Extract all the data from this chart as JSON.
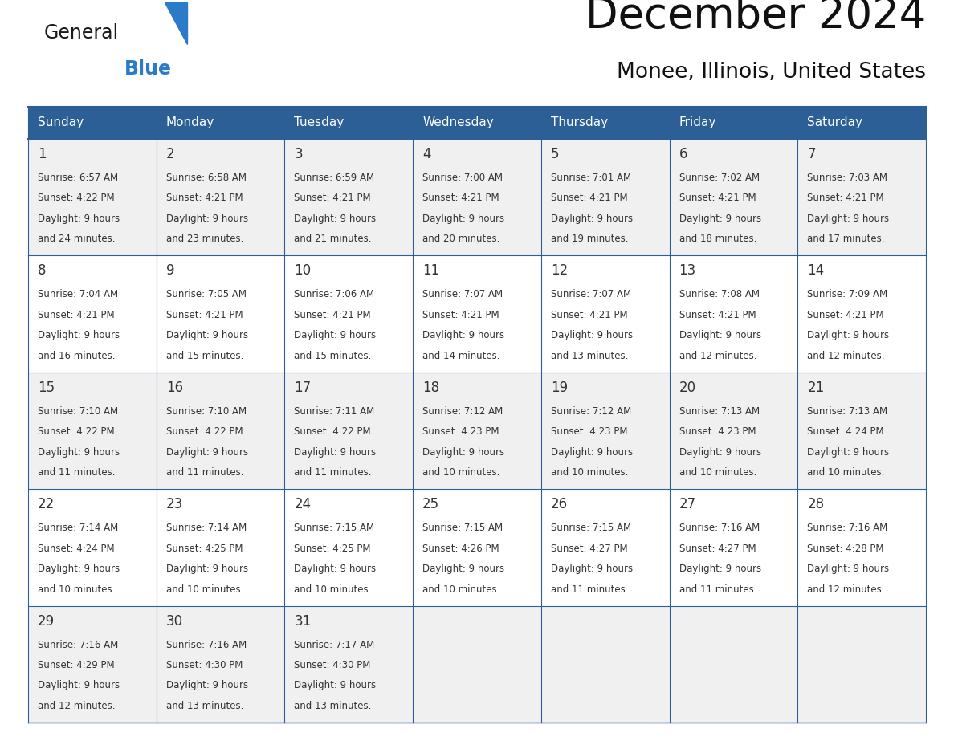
{
  "title": "December 2024",
  "subtitle": "Monee, Illinois, United States",
  "header_bg": "#2B5F96",
  "header_text_color": "#FFFFFF",
  "cell_bg_odd": "#F0F0F0",
  "cell_bg_even": "#FFFFFF",
  "day_number_color": "#333333",
  "text_color": "#333333",
  "border_color": "#2B5F96",
  "logo_general_color": "#1a1a1a",
  "logo_blue_color": "#2B7BC8",
  "logo_triangle_color": "#2B7BC8",
  "days_of_week": [
    "Sunday",
    "Monday",
    "Tuesday",
    "Wednesday",
    "Thursday",
    "Friday",
    "Saturday"
  ],
  "weeks": [
    [
      {
        "day": 1,
        "sunrise": "6:57 AM",
        "sunset": "4:22 PM",
        "daylight_hours": 9,
        "daylight_minutes": 24
      },
      {
        "day": 2,
        "sunrise": "6:58 AM",
        "sunset": "4:21 PM",
        "daylight_hours": 9,
        "daylight_minutes": 23
      },
      {
        "day": 3,
        "sunrise": "6:59 AM",
        "sunset": "4:21 PM",
        "daylight_hours": 9,
        "daylight_minutes": 21
      },
      {
        "day": 4,
        "sunrise": "7:00 AM",
        "sunset": "4:21 PM",
        "daylight_hours": 9,
        "daylight_minutes": 20
      },
      {
        "day": 5,
        "sunrise": "7:01 AM",
        "sunset": "4:21 PM",
        "daylight_hours": 9,
        "daylight_minutes": 19
      },
      {
        "day": 6,
        "sunrise": "7:02 AM",
        "sunset": "4:21 PM",
        "daylight_hours": 9,
        "daylight_minutes": 18
      },
      {
        "day": 7,
        "sunrise": "7:03 AM",
        "sunset": "4:21 PM",
        "daylight_hours": 9,
        "daylight_minutes": 17
      }
    ],
    [
      {
        "day": 8,
        "sunrise": "7:04 AM",
        "sunset": "4:21 PM",
        "daylight_hours": 9,
        "daylight_minutes": 16
      },
      {
        "day": 9,
        "sunrise": "7:05 AM",
        "sunset": "4:21 PM",
        "daylight_hours": 9,
        "daylight_minutes": 15
      },
      {
        "day": 10,
        "sunrise": "7:06 AM",
        "sunset": "4:21 PM",
        "daylight_hours": 9,
        "daylight_minutes": 15
      },
      {
        "day": 11,
        "sunrise": "7:07 AM",
        "sunset": "4:21 PM",
        "daylight_hours": 9,
        "daylight_minutes": 14
      },
      {
        "day": 12,
        "sunrise": "7:07 AM",
        "sunset": "4:21 PM",
        "daylight_hours": 9,
        "daylight_minutes": 13
      },
      {
        "day": 13,
        "sunrise": "7:08 AM",
        "sunset": "4:21 PM",
        "daylight_hours": 9,
        "daylight_minutes": 12
      },
      {
        "day": 14,
        "sunrise": "7:09 AM",
        "sunset": "4:21 PM",
        "daylight_hours": 9,
        "daylight_minutes": 12
      }
    ],
    [
      {
        "day": 15,
        "sunrise": "7:10 AM",
        "sunset": "4:22 PM",
        "daylight_hours": 9,
        "daylight_minutes": 11
      },
      {
        "day": 16,
        "sunrise": "7:10 AM",
        "sunset": "4:22 PM",
        "daylight_hours": 9,
        "daylight_minutes": 11
      },
      {
        "day": 17,
        "sunrise": "7:11 AM",
        "sunset": "4:22 PM",
        "daylight_hours": 9,
        "daylight_minutes": 11
      },
      {
        "day": 18,
        "sunrise": "7:12 AM",
        "sunset": "4:23 PM",
        "daylight_hours": 9,
        "daylight_minutes": 10
      },
      {
        "day": 19,
        "sunrise": "7:12 AM",
        "sunset": "4:23 PM",
        "daylight_hours": 9,
        "daylight_minutes": 10
      },
      {
        "day": 20,
        "sunrise": "7:13 AM",
        "sunset": "4:23 PM",
        "daylight_hours": 9,
        "daylight_minutes": 10
      },
      {
        "day": 21,
        "sunrise": "7:13 AM",
        "sunset": "4:24 PM",
        "daylight_hours": 9,
        "daylight_minutes": 10
      }
    ],
    [
      {
        "day": 22,
        "sunrise": "7:14 AM",
        "sunset": "4:24 PM",
        "daylight_hours": 9,
        "daylight_minutes": 10
      },
      {
        "day": 23,
        "sunrise": "7:14 AM",
        "sunset": "4:25 PM",
        "daylight_hours": 9,
        "daylight_minutes": 10
      },
      {
        "day": 24,
        "sunrise": "7:15 AM",
        "sunset": "4:25 PM",
        "daylight_hours": 9,
        "daylight_minutes": 10
      },
      {
        "day": 25,
        "sunrise": "7:15 AM",
        "sunset": "4:26 PM",
        "daylight_hours": 9,
        "daylight_minutes": 10
      },
      {
        "day": 26,
        "sunrise": "7:15 AM",
        "sunset": "4:27 PM",
        "daylight_hours": 9,
        "daylight_minutes": 11
      },
      {
        "day": 27,
        "sunrise": "7:16 AM",
        "sunset": "4:27 PM",
        "daylight_hours": 9,
        "daylight_minutes": 11
      },
      {
        "day": 28,
        "sunrise": "7:16 AM",
        "sunset": "4:28 PM",
        "daylight_hours": 9,
        "daylight_minutes": 12
      }
    ],
    [
      {
        "day": 29,
        "sunrise": "7:16 AM",
        "sunset": "4:29 PM",
        "daylight_hours": 9,
        "daylight_minutes": 12
      },
      {
        "day": 30,
        "sunrise": "7:16 AM",
        "sunset": "4:30 PM",
        "daylight_hours": 9,
        "daylight_minutes": 13
      },
      {
        "day": 31,
        "sunrise": "7:17 AM",
        "sunset": "4:30 PM",
        "daylight_hours": 9,
        "daylight_minutes": 13
      },
      null,
      null,
      null,
      null
    ]
  ]
}
